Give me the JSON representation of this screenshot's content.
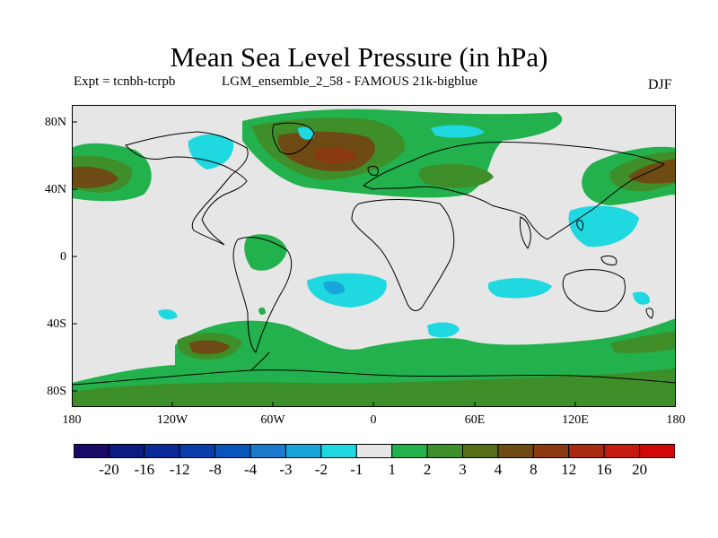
{
  "header": {
    "title": "Mean Sea Level Pressure (in hPa)",
    "expt": "Expt = tcnbh-tcrpb",
    "ensemble": "LGM_ensemble_2_58 - FAMOUS 21k-bigblue",
    "season": "DJF"
  },
  "map": {
    "lat_labels": [
      "80N",
      "40N",
      "0",
      "40S",
      "80S"
    ],
    "lon_labels": [
      "180",
      "120W",
      "60W",
      "0",
      "60E",
      "120E",
      "180"
    ],
    "background_color": "#e6e6e6",
    "coastline_color": "#000000"
  },
  "colorbar": {
    "labels": [
      "-20",
      "-16",
      "-12",
      "-8",
      "-4",
      "-3",
      "-2",
      "-1",
      "1",
      "2",
      "3",
      "4",
      "8",
      "12",
      "16",
      "20"
    ],
    "colors": [
      "#1a0a66",
      "#0d1a80",
      "#0a2a99",
      "#0a3caa",
      "#0a55bb",
      "#1a7acc",
      "#16a6d9",
      "#1fd8e0",
      "#e6e6e6",
      "#22b14c",
      "#3e8e2a",
      "#566e18",
      "#6e4a14",
      "#8a3a10",
      "#a82a10",
      "#c41a10",
      "#d00808"
    ]
  }
}
